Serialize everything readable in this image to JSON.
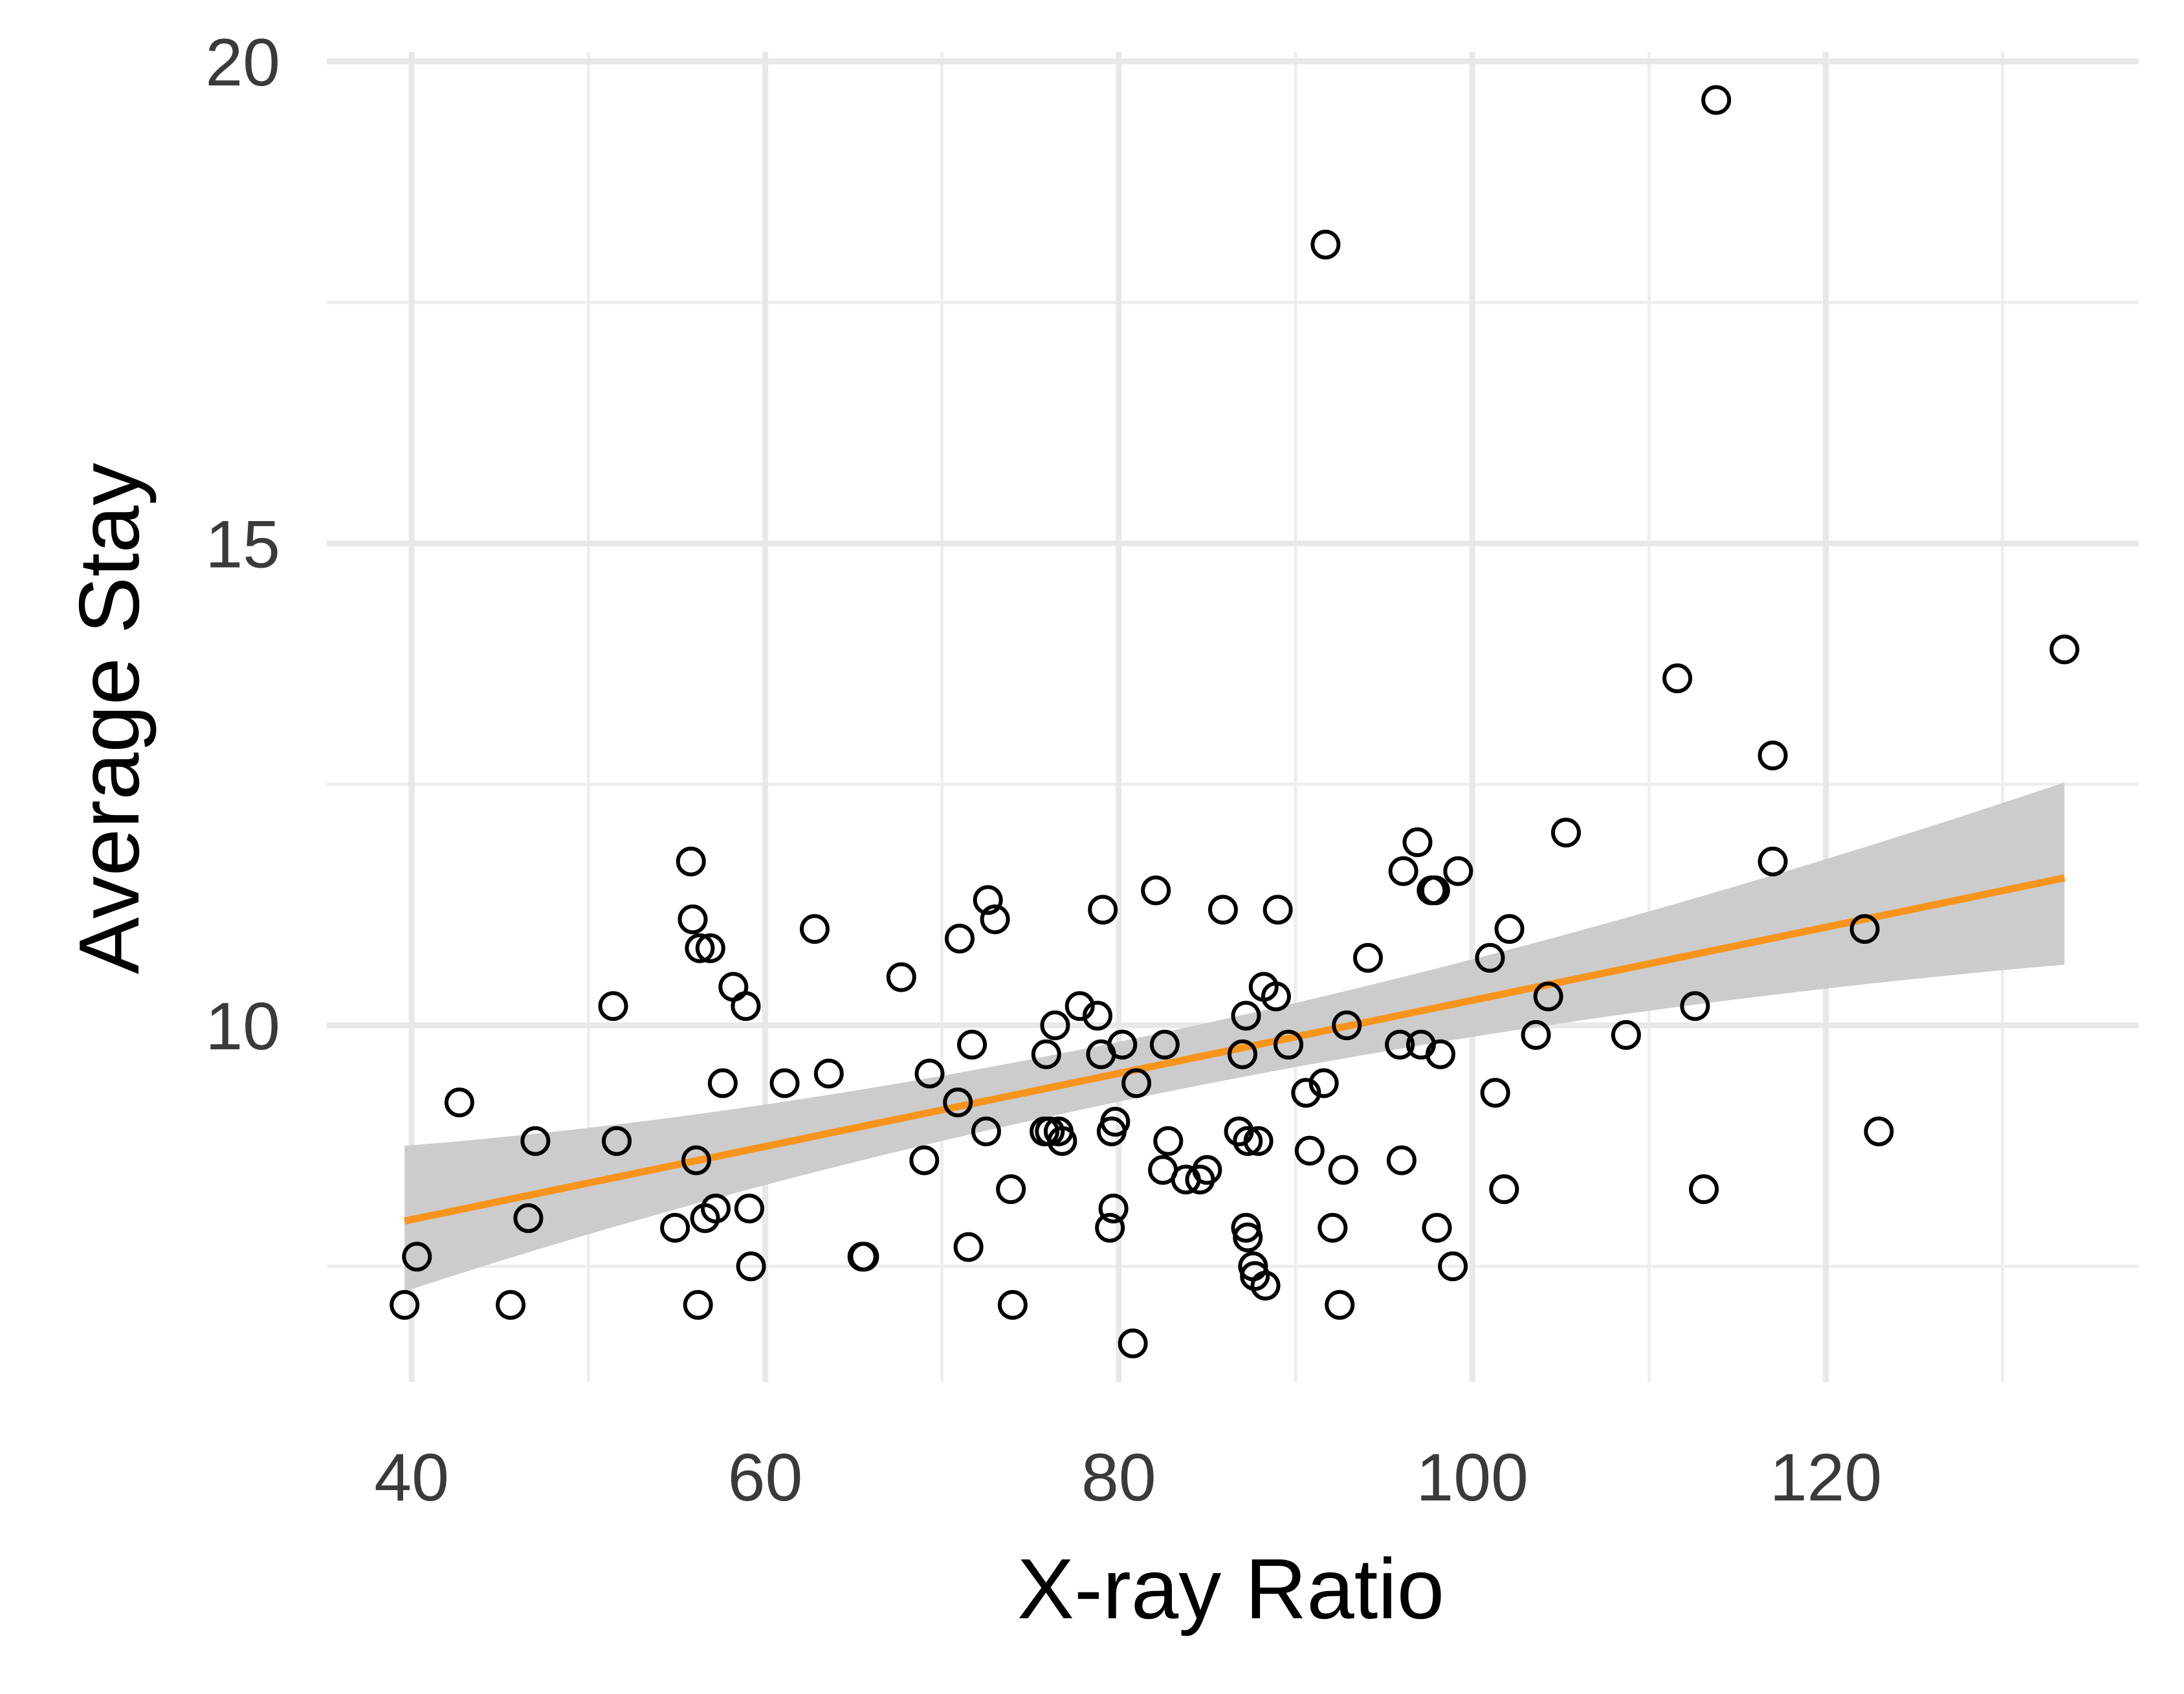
{
  "chart_data": {
    "type": "scatter",
    "title": "",
    "xlabel": "X-ray Ratio",
    "ylabel": "Average Stay",
    "xlim": [
      35.2,
      137.7
    ],
    "ylim": [
      6.3,
      20.1
    ],
    "x_ticks": [
      40,
      60,
      80,
      100,
      120
    ],
    "y_ticks": [
      10,
      15,
      20
    ],
    "x_minor_ticks": [
      50,
      70,
      90,
      110,
      130
    ],
    "y_minor_ticks": [
      7.5,
      12.5,
      17.5
    ],
    "grid": true,
    "legend": "none",
    "colors": {
      "points": "#000000",
      "fit_line": "#f7941d",
      "confidence_band": "#cccccc",
      "grid": "#e8e8e8",
      "tick_labels": "#3a3a3a",
      "axis_titles": "#000000"
    },
    "series": [
      {
        "x": [
          39.6,
          40.3,
          42.7,
          45.6,
          46.6,
          47.0,
          51.4,
          51.6,
          54.9,
          55.8,
          55.9,
          56.1,
          56.2,
          56.3,
          56.6,
          56.9,
          57.2,
          57.6,
          58.2,
          58.9,
          59.1,
          59.2,
          61.1,
          62.8,
          63.6,
          65.5,
          65.6,
          67.7,
          69.0,
          69.3,
          70.9,
          71.0,
          71.5,
          71.7,
          72.5,
          72.6,
          73.0,
          73.9,
          74.0,
          75.8,
          75.9,
          76.1,
          76.4,
          76.6,
          76.8,
          77.8,
          78.8,
          79.0,
          79.1,
          79.5,
          79.6,
          79.7,
          79.8,
          80.2,
          80.8,
          81.0,
          82.1,
          82.5,
          82.6,
          82.8,
          83.8,
          84.6,
          85.0,
          85.9,
          86.8,
          87.0,
          87.2,
          87.2,
          87.3,
          87.3,
          87.6,
          87.7,
          87.9,
          88.2,
          88.3,
          88.9,
          89.0,
          89.6,
          90.6,
          90.8,
          91.6,
          91.7,
          92.1,
          92.5,
          92.7,
          92.9,
          94.1,
          95.9,
          96.0,
          96.1,
          96.9,
          97.1,
          97.7,
          97.9,
          98.0,
          98.2,
          98.9,
          99.2,
          101.0,
          101.3,
          101.8,
          102.1,
          103.6,
          104.3,
          105.3,
          108.7,
          111.6,
          112.6,
          113.1,
          113.8,
          117.0,
          117.0,
          122.2,
          123.0,
          133.5
        ],
        "y": [
          7.1,
          7.6,
          9.2,
          7.1,
          8.0,
          8.8,
          10.2,
          8.8,
          7.9,
          11.7,
          11.1,
          8.6,
          7.1,
          10.8,
          8.0,
          10.8,
          8.1,
          9.4,
          10.4,
          10.2,
          8.1,
          7.5,
          9.4,
          11.0,
          9.5,
          7.6,
          7.6,
          10.5,
          8.6,
          9.5,
          9.2,
          10.9,
          7.7,
          9.8,
          8.9,
          11.3,
          11.1,
          8.3,
          7.1,
          8.9,
          9.7,
          8.9,
          10.0,
          8.9,
          8.8,
          10.2,
          10.1,
          9.7,
          11.2,
          7.9,
          8.9,
          8.1,
          9.0,
          9.8,
          6.7,
          9.4,
          11.4,
          8.5,
          9.8,
          8.8,
          8.4,
          8.4,
          8.5,
          11.2,
          8.9,
          9.7,
          7.9,
          10.1,
          8.8,
          7.8,
          7.5,
          7.4,
          8.8,
          10.4,
          7.3,
          10.3,
          11.2,
          9.8,
          9.3,
          8.7,
          9.4,
          18.1,
          7.9,
          7.1,
          8.5,
          10.0,
          10.7,
          9.8,
          8.6,
          11.6,
          11.9,
          9.8,
          11.4,
          11.4,
          7.9,
          9.7,
          7.5,
          11.6,
          10.7,
          9.3,
          8.3,
          11.0,
          9.9,
          10.3,
          12.0,
          9.9,
          13.6,
          10.2,
          8.3,
          19.6,
          12.8,
          11.7,
          11.0,
          8.9,
          13.9
        ]
      }
    ],
    "fit": {
      "method": "linear",
      "x": [
        39.6,
        133.5
      ],
      "y": [
        7.97,
        11.53
      ],
      "band_lower": [
        7.24,
        10.63
      ],
      "band_upper": [
        8.75,
        12.52
      ]
    }
  }
}
